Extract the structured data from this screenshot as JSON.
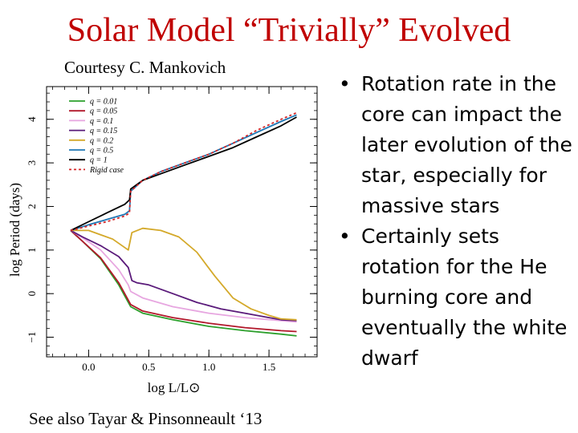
{
  "slide": {
    "title": "Solar Model “Trivially” Evolved",
    "credit": "Courtesy C. Mankovich",
    "see_also": "See also Tayar & Pinsonneault ‘13",
    "bullets": [
      "Rotation rate in the core can impact the later evolution of the star, especially for massive stars",
      "Certainly sets rotation for the He burning core and eventually the white dwarf"
    ],
    "bullet_glyph": "•"
  },
  "chart_data": {
    "type": "line",
    "xlabel": "log L/L⊙",
    "ylabel": "log Period (days)",
    "xlim": [
      -0.35,
      1.9
    ],
    "ylim": [
      -1.45,
      4.75
    ],
    "xticks": [
      0.0,
      0.5,
      1.0,
      1.5
    ],
    "xtick_labels": [
      "0.0",
      "0.5",
      "1.0",
      "1.5"
    ],
    "yticks": [
      -1,
      0,
      1,
      2,
      3,
      4
    ],
    "ytick_labels": [
      "−1",
      "0",
      "1",
      "2",
      "3",
      "4"
    ],
    "legend_position": "top-left",
    "series": [
      {
        "name": "q = 0.01",
        "color": "#2ca02c",
        "dash": false,
        "x": [
          -0.15,
          -0.05,
          0.1,
          0.25,
          0.33,
          0.35,
          0.45,
          0.7,
          1.0,
          1.3,
          1.6,
          1.73
        ],
        "y": [
          1.45,
          1.2,
          0.8,
          0.2,
          -0.2,
          -0.3,
          -0.45,
          -0.6,
          -0.75,
          -0.85,
          -0.93,
          -0.97
        ]
      },
      {
        "name": "q = 0.05",
        "color": "#b2182b",
        "dash": false,
        "x": [
          -0.15,
          -0.05,
          0.1,
          0.25,
          0.33,
          0.35,
          0.45,
          0.7,
          1.0,
          1.3,
          1.6,
          1.73
        ],
        "y": [
          1.45,
          1.2,
          0.82,
          0.25,
          -0.15,
          -0.25,
          -0.4,
          -0.55,
          -0.68,
          -0.78,
          -0.85,
          -0.87
        ]
      },
      {
        "name": "q = 0.1",
        "color": "#e7a6e0",
        "dash": false,
        "x": [
          -0.15,
          -0.05,
          0.1,
          0.25,
          0.33,
          0.35,
          0.45,
          0.7,
          1.0,
          1.3,
          1.6,
          1.73
        ],
        "y": [
          1.45,
          1.28,
          1.0,
          0.55,
          0.2,
          0.05,
          -0.1,
          -0.3,
          -0.45,
          -0.55,
          -0.62,
          -0.65
        ]
      },
      {
        "name": "q = 0.15",
        "color": "#5a1a7a",
        "dash": false,
        "x": [
          -0.15,
          -0.05,
          0.1,
          0.25,
          0.33,
          0.36,
          0.4,
          0.5,
          0.7,
          0.9,
          1.1,
          1.3,
          1.5,
          1.6,
          1.73
        ],
        "y": [
          1.45,
          1.3,
          1.1,
          0.85,
          0.6,
          0.3,
          0.25,
          0.2,
          0.0,
          -0.2,
          -0.35,
          -0.45,
          -0.55,
          -0.6,
          -0.62
        ]
      },
      {
        "name": "q = 0.2",
        "color": "#d4a92a",
        "dash": false,
        "x": [
          -0.15,
          0.0,
          0.2,
          0.33,
          0.36,
          0.45,
          0.6,
          0.75,
          0.9,
          1.05,
          1.2,
          1.35,
          1.5,
          1.6,
          1.73
        ],
        "y": [
          1.45,
          1.45,
          1.25,
          1.0,
          1.4,
          1.5,
          1.45,
          1.3,
          0.95,
          0.4,
          -0.1,
          -0.35,
          -0.5,
          -0.58,
          -0.6
        ]
      },
      {
        "name": "q = 0.5",
        "color": "#1f77b4",
        "dash": false,
        "x": [
          -0.15,
          0.0,
          0.15,
          0.3,
          0.34,
          0.35,
          0.45,
          0.6,
          0.8,
          1.0,
          1.2,
          1.4,
          1.6,
          1.73
        ],
        "y": [
          1.45,
          1.58,
          1.7,
          1.82,
          1.9,
          2.35,
          2.6,
          2.8,
          3.0,
          3.2,
          3.45,
          3.7,
          3.95,
          4.1
        ]
      },
      {
        "name": "q = 1",
        "color": "#000000",
        "dash": false,
        "x": [
          -0.15,
          0.0,
          0.15,
          0.3,
          0.34,
          0.35,
          0.45,
          0.6,
          0.8,
          1.0,
          1.2,
          1.4,
          1.6,
          1.73
        ],
        "y": [
          1.45,
          1.65,
          1.85,
          2.05,
          2.15,
          2.4,
          2.6,
          2.75,
          2.95,
          3.15,
          3.35,
          3.6,
          3.85,
          4.05
        ]
      },
      {
        "name": "Rigid case",
        "color": "#d62728",
        "dash": true,
        "x": [
          -0.15,
          0.0,
          0.15,
          0.3,
          0.34,
          0.35,
          0.45,
          0.6,
          0.8,
          1.0,
          1.2,
          1.4,
          1.6,
          1.73
        ],
        "y": [
          1.45,
          1.55,
          1.65,
          1.78,
          1.85,
          2.35,
          2.6,
          2.8,
          3.0,
          3.2,
          3.45,
          3.75,
          4.0,
          4.15
        ]
      }
    ]
  }
}
